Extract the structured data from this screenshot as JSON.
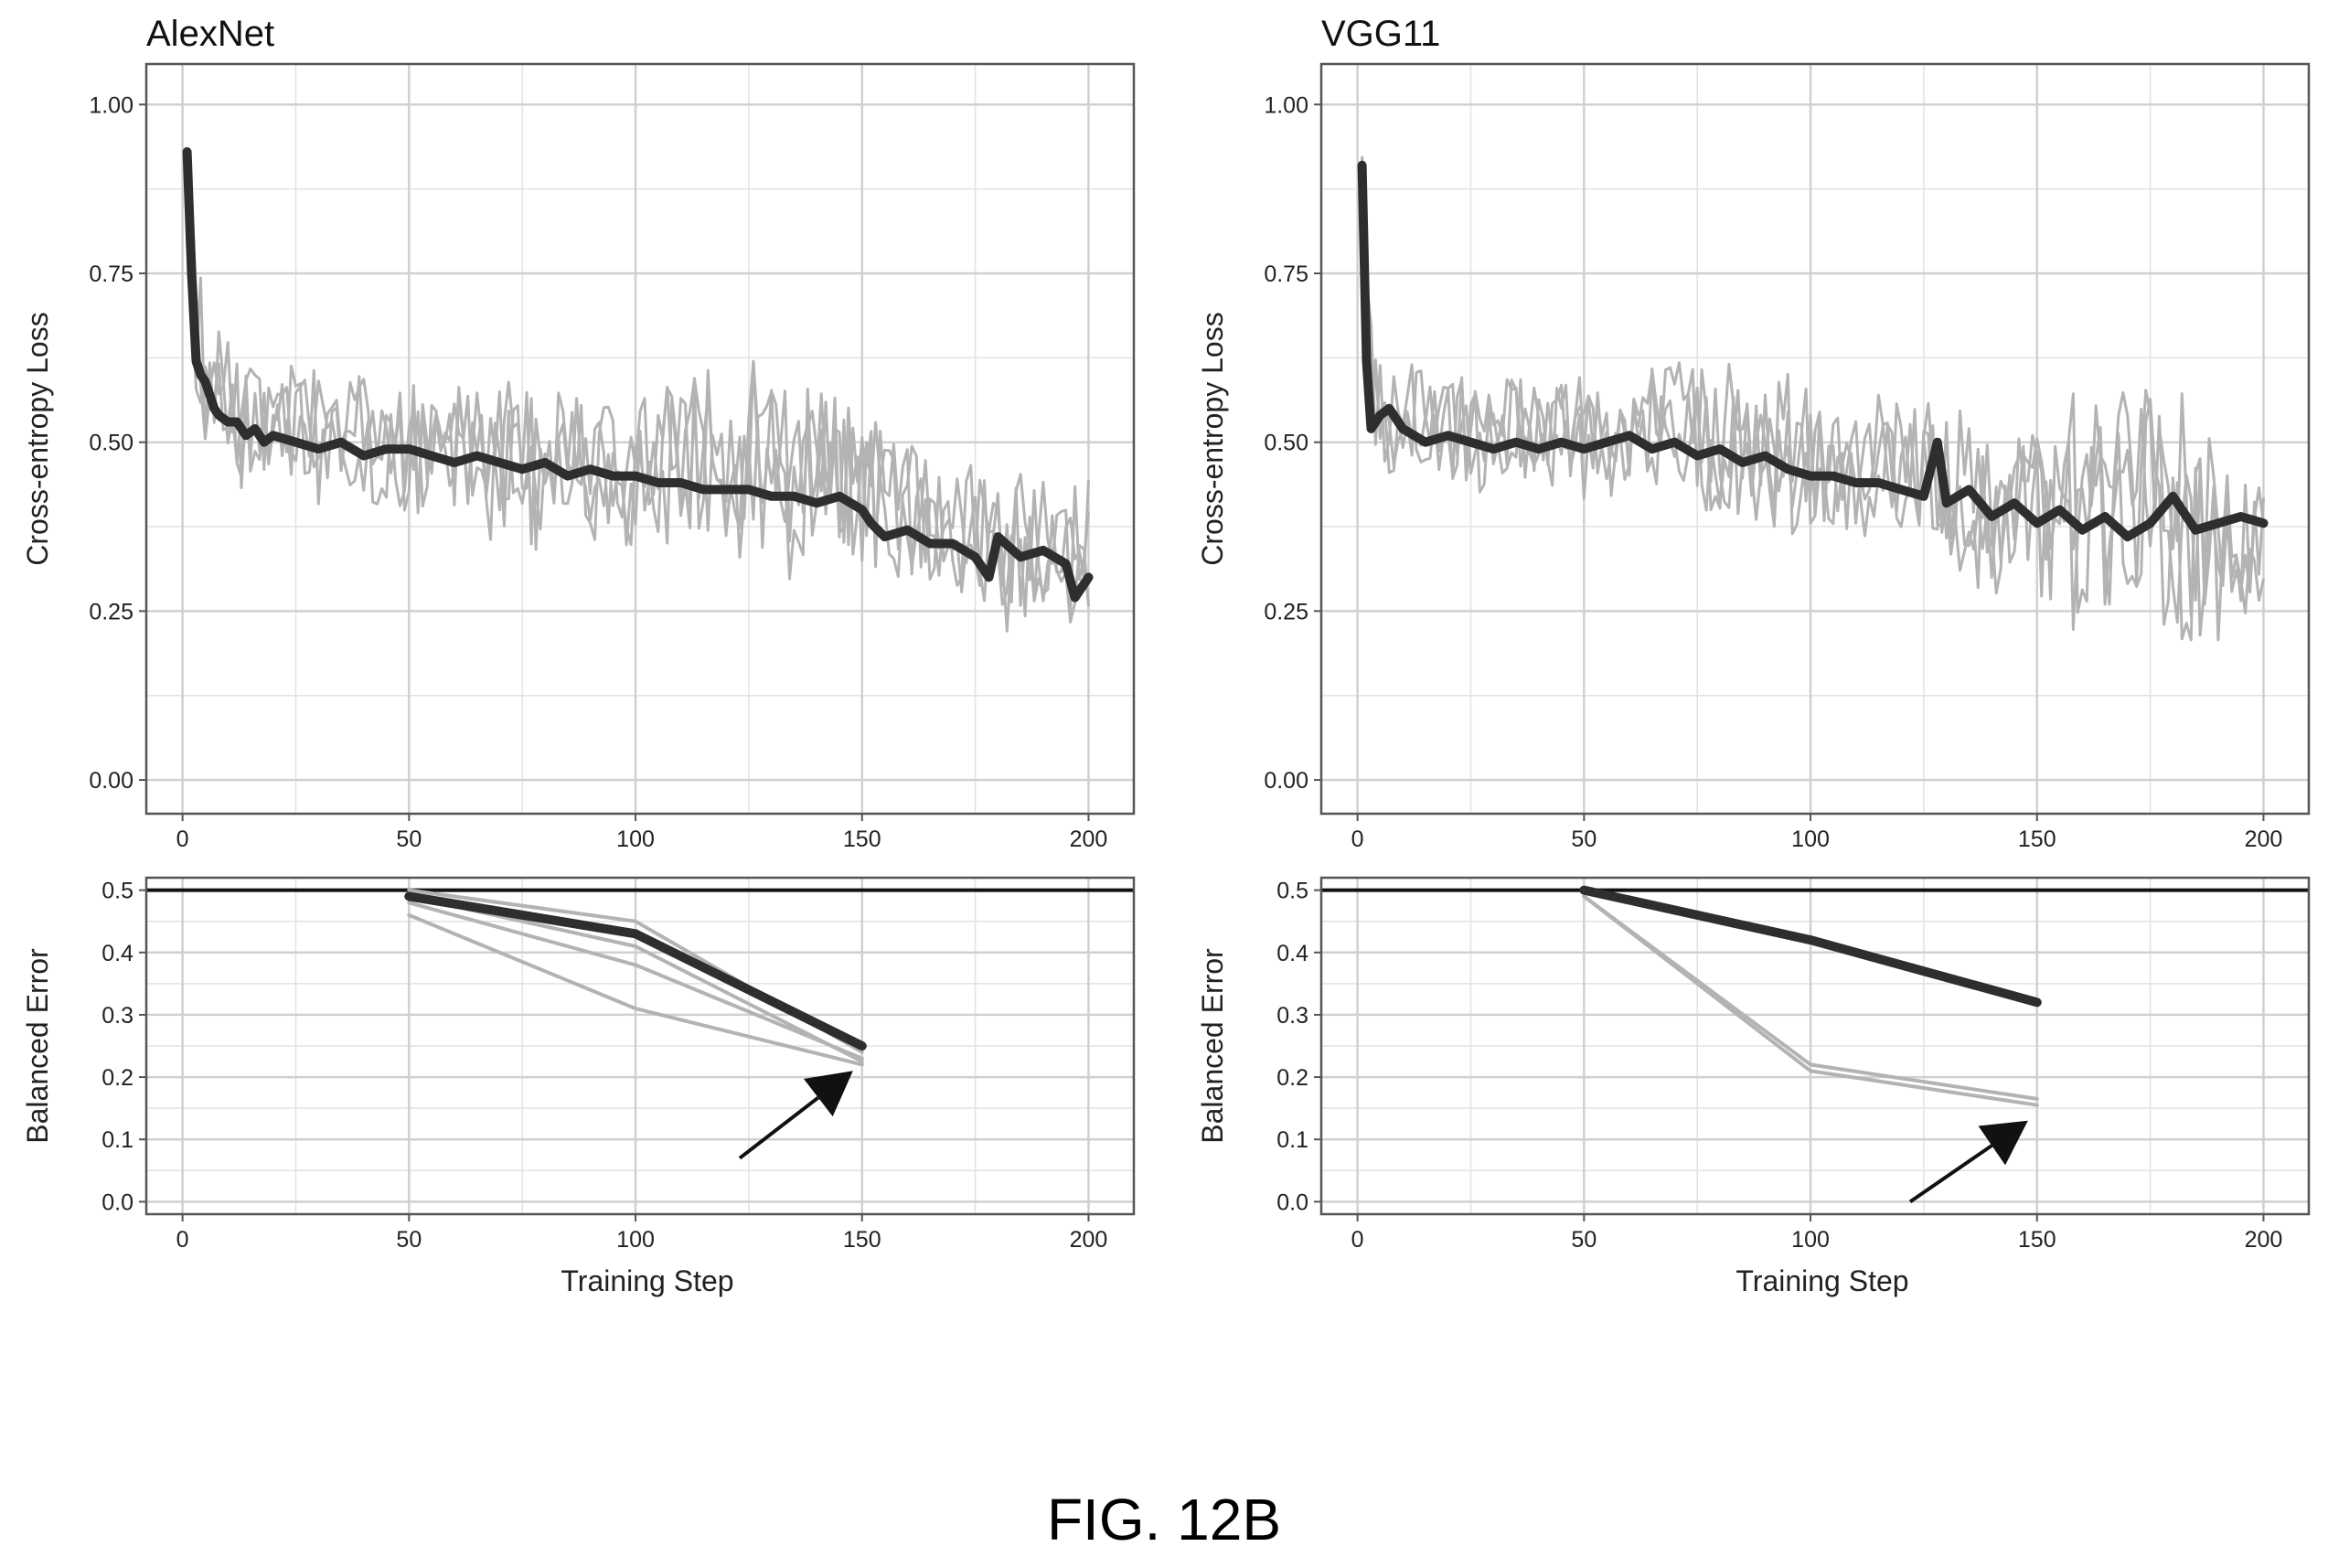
{
  "figure_caption": "FIG. 12B",
  "colors": {
    "mean_line": "#2e2e2e",
    "run_lines": "#b3b3b3",
    "grid": "#d0d0d0",
    "frame": "#555555"
  },
  "chart_data": [
    {
      "type": "line",
      "title": "AlexNet",
      "ylabel": "Cross-entropy Loss",
      "xlabel": "",
      "xlim": [
        -8,
        210
      ],
      "ylim": [
        -0.05,
        1.06
      ],
      "xticks": [
        0,
        50,
        100,
        150,
        200
      ],
      "xtick_labels": [
        "0",
        "50",
        "100",
        "150",
        "200"
      ],
      "yticks": [
        0,
        0.25,
        0.5,
        0.75,
        1.0
      ],
      "ytick_labels": [
        "0.00",
        "0.25",
        "0.50",
        "0.75",
        "1.00"
      ],
      "grid": true,
      "series": [
        {
          "role": "mean",
          "x": [
            1,
            2,
            3,
            4,
            5,
            6,
            7,
            8,
            10,
            12,
            14,
            16,
            18,
            20,
            25,
            30,
            35,
            40,
            45,
            50,
            55,
            60,
            65,
            70,
            75,
            80,
            85,
            90,
            95,
            100,
            105,
            110,
            115,
            120,
            125,
            130,
            135,
            140,
            145,
            150,
            152,
            155,
            160,
            165,
            170,
            175,
            178,
            180,
            185,
            190,
            195,
            197,
            200
          ],
          "y": [
            0.93,
            0.75,
            0.62,
            0.6,
            0.59,
            0.57,
            0.55,
            0.54,
            0.53,
            0.53,
            0.51,
            0.52,
            0.5,
            0.51,
            0.5,
            0.49,
            0.5,
            0.48,
            0.49,
            0.49,
            0.48,
            0.47,
            0.48,
            0.47,
            0.46,
            0.47,
            0.45,
            0.46,
            0.45,
            0.45,
            0.44,
            0.44,
            0.43,
            0.43,
            0.43,
            0.42,
            0.42,
            0.41,
            0.42,
            0.4,
            0.38,
            0.36,
            0.37,
            0.35,
            0.35,
            0.33,
            0.3,
            0.36,
            0.33,
            0.34,
            0.32,
            0.27,
            0.3
          ]
        },
        {
          "role": "runs-upper-envelope",
          "x": [
            1,
            3,
            5,
            10,
            20,
            30,
            50,
            75,
            100,
            125,
            150,
            175,
            200
          ],
          "y": [
            0.98,
            0.85,
            0.72,
            0.68,
            0.64,
            0.62,
            0.6,
            0.6,
            0.62,
            0.65,
            0.58,
            0.48,
            0.45
          ]
        },
        {
          "role": "runs-lower-envelope",
          "x": [
            1,
            3,
            5,
            10,
            20,
            30,
            50,
            75,
            100,
            125,
            150,
            175,
            200
          ],
          "y": [
            0.8,
            0.55,
            0.44,
            0.4,
            0.41,
            0.4,
            0.37,
            0.34,
            0.32,
            0.3,
            0.27,
            0.2,
            0.22
          ]
        }
      ]
    },
    {
      "type": "line",
      "title": "VGG11",
      "ylabel": "Cross-entropy Loss",
      "xlabel": "",
      "xlim": [
        -8,
        210
      ],
      "ylim": [
        -0.05,
        1.06
      ],
      "xticks": [
        0,
        50,
        100,
        150,
        200
      ],
      "xtick_labels": [
        "0",
        "50",
        "100",
        "150",
        "200"
      ],
      "yticks": [
        0,
        0.25,
        0.5,
        0.75,
        1.0
      ],
      "ytick_labels": [
        "0.00",
        "0.25",
        "0.50",
        "0.75",
        "1.00"
      ],
      "grid": true,
      "series": [
        {
          "role": "mean",
          "x": [
            1,
            2,
            3,
            4,
            5,
            7,
            10,
            15,
            20,
            25,
            30,
            35,
            40,
            45,
            50,
            55,
            60,
            65,
            70,
            75,
            80,
            85,
            90,
            95,
            100,
            105,
            110,
            115,
            120,
            125,
            128,
            130,
            135,
            140,
            145,
            150,
            155,
            160,
            165,
            170,
            175,
            180,
            185,
            190,
            195,
            200
          ],
          "y": [
            0.91,
            0.62,
            0.52,
            0.53,
            0.54,
            0.55,
            0.52,
            0.5,
            0.51,
            0.5,
            0.49,
            0.5,
            0.49,
            0.5,
            0.49,
            0.5,
            0.51,
            0.49,
            0.5,
            0.48,
            0.49,
            0.47,
            0.48,
            0.46,
            0.45,
            0.45,
            0.44,
            0.44,
            0.43,
            0.42,
            0.5,
            0.41,
            0.43,
            0.39,
            0.41,
            0.38,
            0.4,
            0.37,
            0.39,
            0.36,
            0.38,
            0.42,
            0.37,
            0.38,
            0.39,
            0.38
          ]
        },
        {
          "role": "runs-upper-envelope",
          "x": [
            1,
            3,
            5,
            10,
            20,
            30,
            50,
            75,
            100,
            125,
            150,
            175,
            200
          ],
          "y": [
            0.95,
            0.72,
            0.64,
            0.62,
            0.63,
            0.62,
            0.6,
            0.65,
            0.6,
            0.58,
            0.56,
            0.6,
            0.56
          ]
        },
        {
          "role": "runs-lower-envelope",
          "x": [
            1,
            3,
            5,
            10,
            20,
            30,
            50,
            75,
            100,
            125,
            150,
            175,
            200
          ],
          "y": [
            0.85,
            0.4,
            0.42,
            0.43,
            0.42,
            0.42,
            0.4,
            0.38,
            0.35,
            0.3,
            0.22,
            0.16,
            0.2
          ]
        }
      ]
    },
    {
      "type": "line",
      "title": "",
      "ylabel": "Balanced Error",
      "xlabel": "Training Step",
      "xlim": [
        -8,
        210
      ],
      "ylim": [
        -0.02,
        0.52
      ],
      "xticks": [
        0,
        50,
        100,
        150,
        200
      ],
      "xtick_labels": [
        "0",
        "50",
        "100",
        "150",
        "200"
      ],
      "yticks": [
        0,
        0.1,
        0.2,
        0.3,
        0.4,
        0.5
      ],
      "ytick_labels": [
        "0.0",
        "0.1",
        "0.2",
        "0.3",
        "0.4",
        "0.5"
      ],
      "grid": true,
      "series": [
        {
          "role": "baseline",
          "x": [
            -8,
            210
          ],
          "y": [
            0.5,
            0.5
          ]
        },
        {
          "role": "mean",
          "x": [
            50,
            100,
            150
          ],
          "y": [
            0.49,
            0.43,
            0.25
          ]
        },
        {
          "role": "run",
          "x": [
            50,
            100,
            150
          ],
          "y": [
            0.46,
            0.31,
            0.22
          ]
        },
        {
          "role": "run",
          "x": [
            50,
            100,
            150
          ],
          "y": [
            0.48,
            0.38,
            0.23
          ]
        },
        {
          "role": "run",
          "x": [
            50,
            100,
            150
          ],
          "y": [
            0.49,
            0.41,
            0.225
          ]
        },
        {
          "role": "run",
          "x": [
            50,
            100,
            150
          ],
          "y": [
            0.5,
            0.45,
            0.24
          ]
        }
      ],
      "arrow": {
        "from": [
          123,
          0.07
        ],
        "to": [
          148,
          0.21
        ]
      }
    },
    {
      "type": "line",
      "title": "",
      "ylabel": "Balanced Error",
      "xlabel": "Training Step",
      "xlim": [
        -8,
        210
      ],
      "ylim": [
        -0.02,
        0.52
      ],
      "xticks": [
        0,
        50,
        100,
        150,
        200
      ],
      "xtick_labels": [
        "0",
        "50",
        "100",
        "150",
        "200"
      ],
      "yticks": [
        0,
        0.1,
        0.2,
        0.3,
        0.4,
        0.5
      ],
      "ytick_labels": [
        "0.0",
        "0.1",
        "0.2",
        "0.3",
        "0.4",
        "0.5"
      ],
      "grid": true,
      "series": [
        {
          "role": "baseline",
          "x": [
            -8,
            210
          ],
          "y": [
            0.5,
            0.5
          ]
        },
        {
          "role": "mean",
          "x": [
            50,
            100,
            150
          ],
          "y": [
            0.5,
            0.42,
            0.32
          ]
        },
        {
          "role": "run",
          "x": [
            50,
            100,
            150
          ],
          "y": [
            0.49,
            0.21,
            0.155
          ]
        },
        {
          "role": "run",
          "x": [
            50,
            100,
            150
          ],
          "y": [
            0.49,
            0.22,
            0.165
          ]
        }
      ],
      "arrow": {
        "from": [
          122,
          0.0
        ],
        "to": [
          148,
          0.13
        ]
      }
    }
  ]
}
